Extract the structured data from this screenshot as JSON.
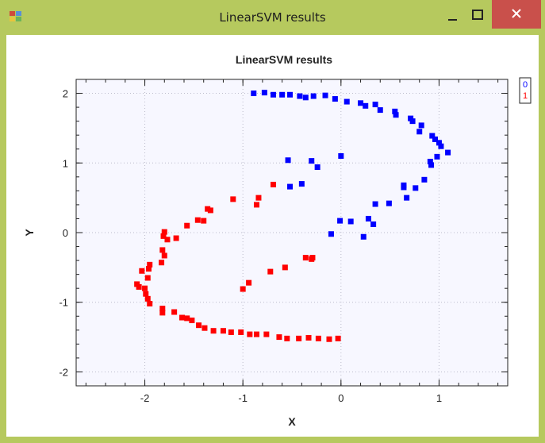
{
  "window": {
    "title": "LinearSVM results",
    "controls": {
      "minimize": "minimize",
      "maximize": "maximize",
      "close": "close"
    }
  },
  "colors": {
    "titlebar": "#b6c95e",
    "close": "#c9504b",
    "class0": "#0000ff",
    "class1": "#ff0000",
    "plot_bg": "#f7f7ff"
  },
  "chart_data": {
    "type": "scatter",
    "title": "LinearSVM results",
    "xlabel": "X",
    "ylabel": "Y",
    "xlim": [
      -2.7,
      1.7
    ],
    "ylim": [
      -2.2,
      2.2
    ],
    "xticks": [
      -2,
      -1,
      0,
      1
    ],
    "yticks": [
      -2,
      -1,
      0,
      1,
      2
    ],
    "grid": true,
    "legend": "top-right",
    "series": [
      {
        "name": "0",
        "color": "#0000ff",
        "points": [
          [
            -0.89,
            2.0
          ],
          [
            -0.78,
            2.01
          ],
          [
            -0.69,
            1.98
          ],
          [
            -0.6,
            1.98
          ],
          [
            -0.52,
            1.98
          ],
          [
            -0.42,
            1.96
          ],
          [
            -0.36,
            1.94
          ],
          [
            -0.28,
            1.96
          ],
          [
            -0.16,
            1.97
          ],
          [
            -0.06,
            1.92
          ],
          [
            0.06,
            1.88
          ],
          [
            0.2,
            1.86
          ],
          [
            0.25,
            1.82
          ],
          [
            0.35,
            1.84
          ],
          [
            0.4,
            1.76
          ],
          [
            0.55,
            1.74
          ],
          [
            0.56,
            1.69
          ],
          [
            0.71,
            1.64
          ],
          [
            0.73,
            1.6
          ],
          [
            0.82,
            1.54
          ],
          [
            0.8,
            1.45
          ],
          [
            0.93,
            1.39
          ],
          [
            0.96,
            1.34
          ],
          [
            1.0,
            1.29
          ],
          [
            1.02,
            1.24
          ],
          [
            1.09,
            1.15
          ],
          [
            0.98,
            1.09
          ],
          [
            0.91,
            1.02
          ],
          [
            0.92,
            0.97
          ],
          [
            0.85,
            0.76
          ],
          [
            0.64,
            0.68
          ],
          [
            0.64,
            0.65
          ],
          [
            0.76,
            0.64
          ],
          [
            0.67,
            0.5
          ],
          [
            0.49,
            0.42
          ],
          [
            0.35,
            0.41
          ],
          [
            0.28,
            0.2
          ],
          [
            0.33,
            0.12
          ],
          [
            0.1,
            0.16
          ],
          [
            -0.01,
            0.17
          ],
          [
            0.23,
            -0.06
          ],
          [
            -0.1,
            -0.02
          ],
          [
            0.0,
            1.1
          ],
          [
            -0.54,
            1.04
          ],
          [
            -0.3,
            1.03
          ],
          [
            -0.24,
            0.94
          ],
          [
            -0.52,
            0.66
          ],
          [
            -0.4,
            0.7
          ]
        ]
      },
      {
        "name": "1",
        "color": "#ff0000",
        "points": [
          [
            -0.69,
            0.69
          ],
          [
            -0.84,
            0.5
          ],
          [
            -0.86,
            0.4
          ],
          [
            -1.1,
            0.48
          ],
          [
            -1.33,
            0.32
          ],
          [
            -1.36,
            0.34
          ],
          [
            -1.4,
            0.17
          ],
          [
            -1.46,
            0.18
          ],
          [
            -1.57,
            0.1
          ],
          [
            -1.8,
            0.01
          ],
          [
            -1.81,
            -0.05
          ],
          [
            -1.77,
            -0.1
          ],
          [
            -1.68,
            -0.08
          ],
          [
            -1.82,
            -0.25
          ],
          [
            -1.8,
            -0.33
          ],
          [
            -1.83,
            -0.43
          ],
          [
            -1.95,
            -0.46
          ],
          [
            -1.96,
            -0.52
          ],
          [
            -2.03,
            -0.55
          ],
          [
            -1.97,
            -0.65
          ],
          [
            -2.08,
            -0.74
          ],
          [
            -2.06,
            -0.78
          ],
          [
            -2.0,
            -0.8
          ],
          [
            -1.99,
            -0.88
          ],
          [
            -1.97,
            -0.95
          ],
          [
            -1.95,
            -1.02
          ],
          [
            -1.82,
            -1.09
          ],
          [
            -1.82,
            -1.15
          ],
          [
            -1.7,
            -1.14
          ],
          [
            -1.62,
            -1.22
          ],
          [
            -1.57,
            -1.23
          ],
          [
            -1.52,
            -1.26
          ],
          [
            -1.45,
            -1.33
          ],
          [
            -1.39,
            -1.37
          ],
          [
            -1.3,
            -1.41
          ],
          [
            -1.2,
            -1.41
          ],
          [
            -1.12,
            -1.43
          ],
          [
            -1.02,
            -1.43
          ],
          [
            -0.93,
            -1.46
          ],
          [
            -0.86,
            -1.46
          ],
          [
            -0.76,
            -1.46
          ],
          [
            -0.63,
            -1.5
          ],
          [
            -0.55,
            -1.52
          ],
          [
            -0.43,
            -1.52
          ],
          [
            -0.33,
            -1.51
          ],
          [
            -0.23,
            -1.52
          ],
          [
            -0.12,
            -1.53
          ],
          [
            -0.03,
            -1.52
          ],
          [
            -0.29,
            -0.36
          ],
          [
            -0.3,
            -0.38
          ],
          [
            -0.36,
            -0.36
          ],
          [
            -0.57,
            -0.5
          ],
          [
            -0.72,
            -0.56
          ],
          [
            -0.94,
            -0.72
          ],
          [
            -1.0,
            -0.81
          ]
        ]
      }
    ]
  }
}
